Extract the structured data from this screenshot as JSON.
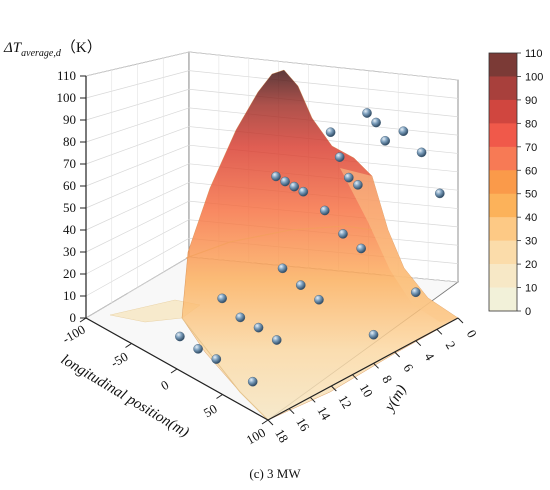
{
  "chart_data": {
    "type": "surface3d",
    "z_axis": {
      "label_prefix": "ΔT",
      "label_subscript": "average,d",
      "label_unit": "（K）",
      "ticks": [
        "0",
        "10",
        "20",
        "30",
        "40",
        "50",
        "60",
        "70",
        "80",
        "90",
        "100",
        "110"
      ],
      "range": [
        0,
        110
      ]
    },
    "x_axis": {
      "label": "longitudinal position(m)",
      "ticks": [
        "-100",
        "-50",
        "0",
        "50",
        "100"
      ],
      "range": [
        -100,
        100
      ]
    },
    "y_axis": {
      "label": "y(m)",
      "ticks": [
        "0",
        "2",
        "4",
        "6",
        "8",
        "10",
        "12",
        "14",
        "16",
        "18"
      ],
      "range": [
        0,
        18
      ]
    },
    "colorbar": {
      "levels": [
        "110",
        "100",
        "90",
        "80",
        "70",
        "60",
        "50",
        "40",
        "30",
        "20",
        "10",
        "0"
      ],
      "colors": [
        "#7b3a36",
        "#a8403c",
        "#d0463f",
        "#f0594a",
        "#f77a55",
        "#fa9a4a",
        "#fcb25a",
        "#fdc985",
        "#fbdcaa",
        "#f7e8c6",
        "#f2f1d9",
        "#edf3df"
      ]
    },
    "surface_peak": {
      "x": 0,
      "y": 0,
      "z": 110
    },
    "measured_points": [
      {
        "x": -100,
        "y": 0,
        "z": 18
      },
      {
        "x": -90,
        "y": 0,
        "z": 18
      },
      {
        "x": -80,
        "y": 0,
        "z": 18
      },
      {
        "x": -70,
        "y": 0,
        "z": 18
      },
      {
        "x": -40,
        "y": 0,
        "z": 52
      },
      {
        "x": -30,
        "y": 0,
        "z": 43
      },
      {
        "x": -20,
        "y": 0,
        "z": 36
      },
      {
        "x": -10,
        "y": 0,
        "z": 35
      },
      {
        "x": 0,
        "y": 0,
        "z": 70
      },
      {
        "x": 10,
        "y": 0,
        "z": 68
      },
      {
        "x": 20,
        "y": 0,
        "z": 62
      },
      {
        "x": 40,
        "y": 0,
        "z": 71
      },
      {
        "x": 60,
        "y": 0,
        "z": 66
      },
      {
        "x": 80,
        "y": 0,
        "z": 52
      },
      {
        "x": 0,
        "y": 4,
        "z": 36
      },
      {
        "x": 20,
        "y": 4,
        "z": 30
      },
      {
        "x": 40,
        "y": 4,
        "z": 28
      },
      {
        "x": 100,
        "y": 4,
        "z": 22
      },
      {
        "x": 0,
        "y": 8,
        "z": 20
      },
      {
        "x": 20,
        "y": 8,
        "z": 17
      },
      {
        "x": 40,
        "y": 8,
        "z": 15
      },
      {
        "x": 100,
        "y": 8,
        "z": 13
      },
      {
        "x": -20,
        "y": 12,
        "z": 12
      },
      {
        "x": 0,
        "y": 12,
        "z": 8
      },
      {
        "x": 20,
        "y": 12,
        "z": 8
      },
      {
        "x": 40,
        "y": 12,
        "z": 7
      },
      {
        "x": -20,
        "y": 16,
        "z": 5
      },
      {
        "x": 0,
        "y": 16,
        "z": 4
      },
      {
        "x": 20,
        "y": 16,
        "z": 4
      },
      {
        "x": 60,
        "y": 16,
        "z": 3
      }
    ],
    "caption": "(c) 3 MW"
  }
}
